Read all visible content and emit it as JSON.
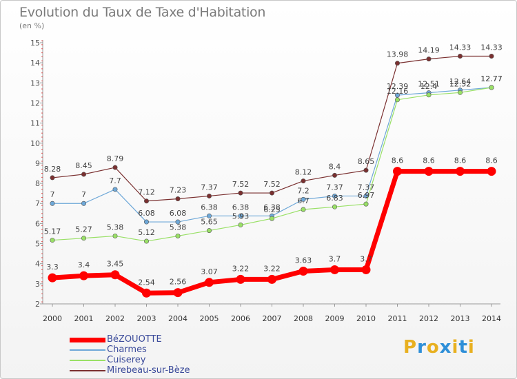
{
  "chart_data": {
    "type": "line",
    "title": "Evolution du Taux de Taxe d'Habitation",
    "subtitle": "(en %)",
    "xlabel": "",
    "ylabel": "",
    "categories": [
      "2000",
      "2001",
      "2002",
      "2003",
      "2004",
      "2005",
      "2006",
      "2007",
      "2008",
      "2009",
      "2010",
      "2011",
      "2012",
      "2013",
      "2014"
    ],
    "ylim": [
      2,
      15
    ],
    "yticks": [
      2,
      3,
      4,
      5,
      6,
      7,
      8,
      9,
      10,
      11,
      12,
      13,
      14,
      15
    ],
    "grid": false,
    "legend_position": "bottom-left",
    "series": [
      {
        "name": "BéZOUOTTE",
        "color": "#ff0000",
        "values": [
          3.3,
          3.4,
          3.45,
          2.54,
          2.56,
          3.07,
          3.22,
          3.22,
          3.63,
          3.7,
          3.7,
          8.6,
          8.6,
          8.6,
          8.6
        ],
        "labels": [
          "3.3",
          "3.4",
          "3.45",
          "2.54",
          "2.56",
          "3.07",
          "3.22",
          "3.22",
          "3.63",
          "3.7",
          "3.7",
          "8.6",
          "8.6",
          "8.6",
          "8.6"
        ]
      },
      {
        "name": "Charmes",
        "color": "#6ea8d8",
        "values": [
          7,
          7,
          7.7,
          6.08,
          6.08,
          6.38,
          6.38,
          6.38,
          7.2,
          7.37,
          7.37,
          12.39,
          12.51,
          12.64,
          12.77
        ],
        "labels": [
          "7",
          "7",
          "7.7",
          "6.08",
          "6.08",
          "6.38",
          "6.38",
          "6.38",
          "7.2",
          "7.37",
          "7.37",
          "12.39",
          "12.51",
          "12.64",
          "12.77"
        ]
      },
      {
        "name": "Cuiserey",
        "color": "#99e066",
        "values": [
          5.17,
          5.27,
          5.38,
          5.12,
          5.38,
          5.65,
          5.93,
          6.25,
          6.7,
          6.83,
          6.97,
          12.16,
          12.4,
          12.52,
          12.77
        ],
        "labels": [
          "5.17",
          "5.27",
          "5.38",
          "5.12",
          "5.38",
          "5.65",
          "5.93",
          "6.25",
          "6.7",
          "6.83",
          "6.97",
          "12.16",
          "12.4",
          "12.52",
          "12.77"
        ]
      },
      {
        "name": "Mirebeau-sur-Bèze",
        "color": "#7a3030",
        "values": [
          8.28,
          8.45,
          8.79,
          7.12,
          7.23,
          7.37,
          7.52,
          7.52,
          8.12,
          8.4,
          8.65,
          13.98,
          14.19,
          14.33,
          14.33
        ],
        "labels": [
          "8.28",
          "8.45",
          "8.79",
          "7.12",
          "7.23",
          "7.37",
          "7.52",
          "7.52",
          "8.12",
          "8.4",
          "8.65",
          "13.98",
          "14.19",
          "14.33",
          "14.33"
        ]
      }
    ]
  },
  "logo": {
    "letters": [
      "P",
      "r",
      "o",
      "x",
      "i",
      "t",
      "i"
    ],
    "colors": [
      "#e8b020",
      "#2e8fd8",
      "#e8b020",
      "#2e8fd8",
      "#e8b020",
      "#2e8fd8",
      "#e8b020"
    ]
  }
}
